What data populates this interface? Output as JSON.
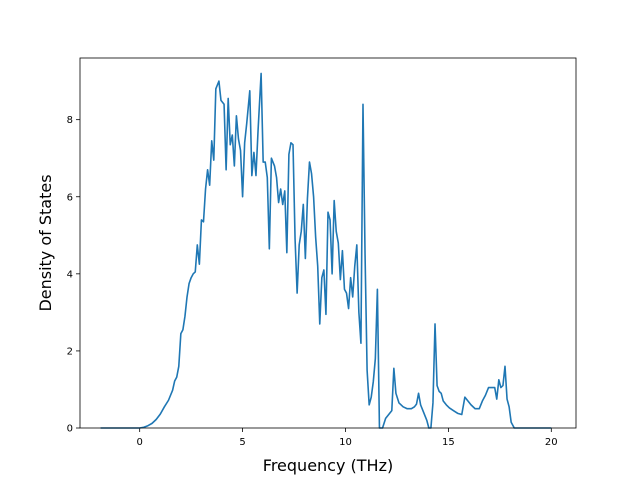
{
  "chart_data": {
    "type": "line",
    "title": "",
    "xlabel": "Frequency (THz)",
    "ylabel": "Density of States",
    "xlim": [
      -2.9,
      21.2
    ],
    "ylim": [
      0,
      9.6
    ],
    "x_ticks": [
      0,
      5,
      10,
      15,
      20
    ],
    "y_ticks": [
      0,
      2,
      4,
      6,
      8
    ],
    "x_tick_labels": [
      "0",
      "5",
      "10",
      "15",
      "20"
    ],
    "y_tick_labels": [
      "0",
      "2",
      "4",
      "6",
      "8"
    ],
    "grid": false,
    "legend": "none",
    "series": [
      {
        "color": "#1f77b4",
        "points": [
          [
            -1.9,
            0
          ],
          [
            -0.5,
            0
          ],
          [
            0,
            0
          ],
          [
            0.2,
            0.02
          ],
          [
            0.4,
            0.06
          ],
          [
            0.6,
            0.12
          ],
          [
            0.8,
            0.22
          ],
          [
            1.0,
            0.36
          ],
          [
            1.2,
            0.55
          ],
          [
            1.4,
            0.72
          ],
          [
            1.6,
            0.98
          ],
          [
            1.7,
            1.22
          ],
          [
            1.8,
            1.32
          ],
          [
            1.9,
            1.6
          ],
          [
            2.0,
            2.45
          ],
          [
            2.1,
            2.55
          ],
          [
            2.2,
            2.9
          ],
          [
            2.3,
            3.4
          ],
          [
            2.4,
            3.75
          ],
          [
            2.5,
            3.9
          ],
          [
            2.6,
            4.0
          ],
          [
            2.7,
            4.05
          ],
          [
            2.8,
            4.75
          ],
          [
            2.9,
            4.25
          ],
          [
            3.0,
            5.4
          ],
          [
            3.1,
            5.35
          ],
          [
            3.2,
            6.2
          ],
          [
            3.3,
            6.7
          ],
          [
            3.4,
            6.3
          ],
          [
            3.5,
            7.45
          ],
          [
            3.6,
            6.95
          ],
          [
            3.7,
            8.8
          ],
          [
            3.85,
            9.0
          ],
          [
            3.95,
            8.5
          ],
          [
            4.1,
            8.4
          ],
          [
            4.2,
            6.7
          ],
          [
            4.3,
            8.55
          ],
          [
            4.4,
            7.35
          ],
          [
            4.5,
            7.6
          ],
          [
            4.6,
            6.8
          ],
          [
            4.7,
            8.1
          ],
          [
            4.8,
            7.5
          ],
          [
            4.9,
            7.2
          ],
          [
            5.0,
            6.0
          ],
          [
            5.1,
            7.4
          ],
          [
            5.2,
            7.9
          ],
          [
            5.35,
            8.75
          ],
          [
            5.45,
            6.55
          ],
          [
            5.55,
            7.15
          ],
          [
            5.65,
            6.55
          ],
          [
            5.75,
            7.7
          ],
          [
            5.9,
            9.2
          ],
          [
            6.0,
            6.9
          ],
          [
            6.1,
            6.9
          ],
          [
            6.2,
            6.5
          ],
          [
            6.3,
            4.65
          ],
          [
            6.4,
            7.0
          ],
          [
            6.55,
            6.8
          ],
          [
            6.65,
            6.5
          ],
          [
            6.75,
            5.85
          ],
          [
            6.85,
            6.2
          ],
          [
            6.95,
            5.8
          ],
          [
            7.05,
            6.15
          ],
          [
            7.15,
            4.55
          ],
          [
            7.25,
            7.1
          ],
          [
            7.35,
            7.4
          ],
          [
            7.45,
            7.35
          ],
          [
            7.55,
            4.9
          ],
          [
            7.65,
            3.5
          ],
          [
            7.75,
            4.75
          ],
          [
            7.85,
            5.1
          ],
          [
            7.95,
            5.8
          ],
          [
            8.05,
            4.4
          ],
          [
            8.15,
            5.95
          ],
          [
            8.25,
            6.9
          ],
          [
            8.35,
            6.6
          ],
          [
            8.45,
            6.0
          ],
          [
            8.55,
            4.95
          ],
          [
            8.65,
            4.2
          ],
          [
            8.75,
            2.7
          ],
          [
            8.85,
            3.9
          ],
          [
            8.95,
            4.1
          ],
          [
            9.05,
            2.95
          ],
          [
            9.15,
            5.6
          ],
          [
            9.25,
            5.4
          ],
          [
            9.35,
            4.0
          ],
          [
            9.45,
            5.9
          ],
          [
            9.55,
            5.1
          ],
          [
            9.65,
            4.8
          ],
          [
            9.75,
            3.85
          ],
          [
            9.85,
            4.6
          ],
          [
            9.95,
            3.6
          ],
          [
            10.05,
            3.5
          ],
          [
            10.15,
            3.1
          ],
          [
            10.25,
            3.9
          ],
          [
            10.35,
            3.4
          ],
          [
            10.45,
            4.2
          ],
          [
            10.55,
            4.75
          ],
          [
            10.65,
            3.0
          ],
          [
            10.75,
            2.2
          ],
          [
            10.85,
            8.4
          ],
          [
            10.95,
            4.5
          ],
          [
            11.05,
            1.5
          ],
          [
            11.15,
            0.6
          ],
          [
            11.25,
            0.8
          ],
          [
            11.35,
            1.2
          ],
          [
            11.45,
            1.8
          ],
          [
            11.55,
            3.6
          ],
          [
            11.65,
            0
          ],
          [
            11.8,
            0
          ],
          [
            11.95,
            0.25
          ],
          [
            12.1,
            0.35
          ],
          [
            12.25,
            0.45
          ],
          [
            12.35,
            1.55
          ],
          [
            12.45,
            0.9
          ],
          [
            12.6,
            0.65
          ],
          [
            12.8,
            0.55
          ],
          [
            13.0,
            0.5
          ],
          [
            13.2,
            0.5
          ],
          [
            13.35,
            0.55
          ],
          [
            13.45,
            0.62
          ],
          [
            13.55,
            0.9
          ],
          [
            13.65,
            0.6
          ],
          [
            13.8,
            0.4
          ],
          [
            13.95,
            0.2
          ],
          [
            14.05,
            0
          ],
          [
            14.15,
            0
          ],
          [
            14.25,
            0.65
          ],
          [
            14.35,
            2.7
          ],
          [
            14.45,
            1.1
          ],
          [
            14.55,
            0.95
          ],
          [
            14.65,
            0.9
          ],
          [
            14.75,
            0.7
          ],
          [
            14.9,
            0.6
          ],
          [
            15.05,
            0.52
          ],
          [
            15.25,
            0.45
          ],
          [
            15.45,
            0.38
          ],
          [
            15.65,
            0.35
          ],
          [
            15.8,
            0.8
          ],
          [
            15.95,
            0.7
          ],
          [
            16.1,
            0.6
          ],
          [
            16.3,
            0.5
          ],
          [
            16.5,
            0.5
          ],
          [
            16.65,
            0.7
          ],
          [
            16.8,
            0.85
          ],
          [
            16.95,
            1.05
          ],
          [
            17.1,
            1.05
          ],
          [
            17.25,
            1.05
          ],
          [
            17.35,
            0.75
          ],
          [
            17.45,
            1.25
          ],
          [
            17.55,
            1.05
          ],
          [
            17.65,
            1.1
          ],
          [
            17.75,
            1.6
          ],
          [
            17.85,
            0.75
          ],
          [
            17.95,
            0.55
          ],
          [
            18.05,
            0.15
          ],
          [
            18.2,
            0
          ],
          [
            18.5,
            0
          ],
          [
            19.0,
            0
          ],
          [
            20.0,
            0
          ]
        ]
      }
    ]
  }
}
